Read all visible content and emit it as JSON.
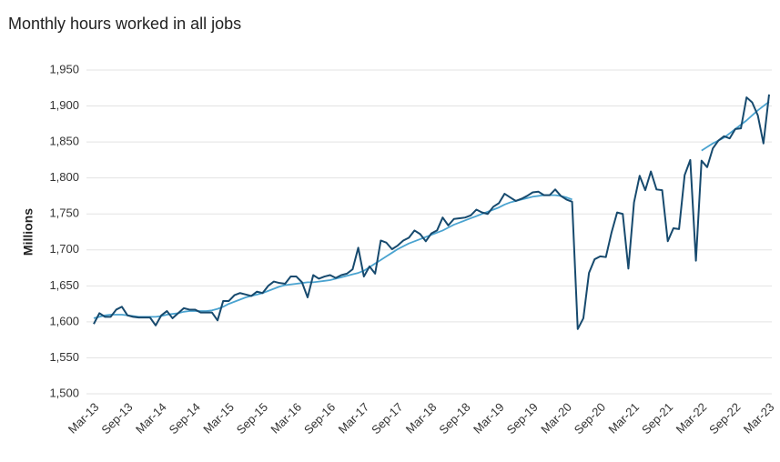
{
  "chart_data": {
    "type": "line",
    "title": "Monthly hours worked in all jobs",
    "y_label": "Millions",
    "categories": [
      "Mar-13",
      null,
      null,
      null,
      null,
      null,
      "Sep-13",
      null,
      null,
      null,
      null,
      null,
      "Mar-14",
      null,
      null,
      null,
      null,
      null,
      "Sep-14",
      null,
      null,
      null,
      null,
      null,
      "Mar-15",
      null,
      null,
      null,
      null,
      null,
      "Sep-15",
      null,
      null,
      null,
      null,
      null,
      "Mar-16",
      null,
      null,
      null,
      null,
      null,
      "Sep-16",
      null,
      null,
      null,
      null,
      null,
      "Mar-17",
      null,
      null,
      null,
      null,
      null,
      "Sep-17",
      null,
      null,
      null,
      null,
      null,
      "Mar-18",
      null,
      null,
      null,
      null,
      null,
      "Sep-18",
      null,
      null,
      null,
      null,
      null,
      "Mar-19",
      null,
      null,
      null,
      null,
      null,
      "Sep-19",
      null,
      null,
      null,
      null,
      null,
      "Mar-20",
      null,
      null,
      null,
      null,
      null,
      "Sep-20",
      null,
      null,
      null,
      null,
      null,
      "Mar-21",
      null,
      null,
      null,
      null,
      null,
      "Sep-21",
      null,
      null,
      null,
      null,
      null,
      "Mar-22",
      null,
      null,
      null,
      null,
      null,
      "Sep-22",
      null,
      null,
      null,
      null,
      null,
      "Mar-23"
    ],
    "series": [
      {
        "color": "#174a6e",
        "values": [
          1597,
          1612,
          1607,
          1607,
          1617,
          1621,
          1609,
          1607,
          1606,
          1606,
          1606,
          1595,
          1609,
          1615,
          1605,
          1612,
          1619,
          1617,
          1617,
          1613,
          1613,
          1613,
          1602,
          1629,
          1629,
          1637,
          1640,
          1638,
          1636,
          1642,
          1640,
          1650,
          1656,
          1654,
          1653,
          1663,
          1663,
          1655,
          1634,
          1665,
          1660,
          1663,
          1665,
          1661,
          1665,
          1667,
          1673,
          1703,
          1663,
          1677,
          1667,
          1713,
          1710,
          1701,
          1706,
          1713,
          1717,
          1727,
          1722,
          1712,
          1723,
          1727,
          1745,
          1734,
          1743,
          1744,
          1745,
          1748,
          1756,
          1752,
          1750,
          1760,
          1765,
          1778,
          1773,
          1768,
          1771,
          1775,
          1780,
          1781,
          1776,
          1776,
          1784,
          1775,
          1770,
          1767,
          1590,
          1605,
          1668,
          1687,
          1691,
          1690,
          1724,
          1752,
          1750,
          1674,
          1766,
          1803,
          1783,
          1809,
          1784,
          1783,
          1712,
          1730,
          1729,
          1804,
          1825,
          1685,
          1824,
          1815,
          1841,
          1852,
          1858,
          1855,
          1868,
          1869,
          1912,
          1905,
          1887,
          1848,
          1916
        ]
      },
      {
        "color": "#4aa3d0",
        "values": [
          1605,
          1607,
          1609,
          1610,
          1610,
          1610,
          1609,
          1608,
          1607,
          1607,
          1607,
          1607,
          1608,
          1610,
          1611,
          1612,
          1614,
          1615,
          1615,
          1615,
          1615,
          1616,
          1618,
          1621,
          1625,
          1628,
          1631,
          1634,
          1636,
          1638,
          1640,
          1643,
          1646,
          1649,
          1651,
          1652,
          1653,
          1654,
          1655,
          1655,
          1656,
          1657,
          1658,
          1660,
          1662,
          1664,
          1666,
          1668,
          1671,
          1676,
          1681,
          1686,
          1691,
          1696,
          1701,
          1705,
          1709,
          1712,
          1715,
          1718,
          1721,
          1724,
          1727,
          1731,
          1735,
          1738,
          1741,
          1744,
          1747,
          1750,
          1753,
          1756,
          1759,
          1763,
          1766,
          1768,
          1770,
          1772,
          1774,
          1775,
          1776,
          1776,
          1776,
          1775,
          1773,
          1770,
          null,
          null,
          null,
          null,
          null,
          null,
          null,
          null,
          null,
          null,
          null,
          null,
          null,
          null,
          null,
          null,
          null,
          null,
          null,
          null,
          null,
          null,
          1838,
          1843,
          1848,
          1852,
          1856,
          1862,
          1868,
          1874,
          1880,
          1887,
          1894,
          1900,
          1906
        ]
      }
    ],
    "ylim": [
      1500,
      1950
    ],
    "yticks": [
      {
        "value": 1500,
        "label": "1,500"
      },
      {
        "value": 1550,
        "label": "1,550"
      },
      {
        "value": 1600,
        "label": "1,600"
      },
      {
        "value": 1650,
        "label": "1,650"
      },
      {
        "value": 1700,
        "label": "1,700"
      },
      {
        "value": 1750,
        "label": "1,750"
      },
      {
        "value": 1800,
        "label": "1,800"
      },
      {
        "value": 1850,
        "label": "1,850"
      },
      {
        "value": 1900,
        "label": "1,900"
      },
      {
        "value": 1950,
        "label": "1,950"
      }
    ],
    "grid": true
  }
}
